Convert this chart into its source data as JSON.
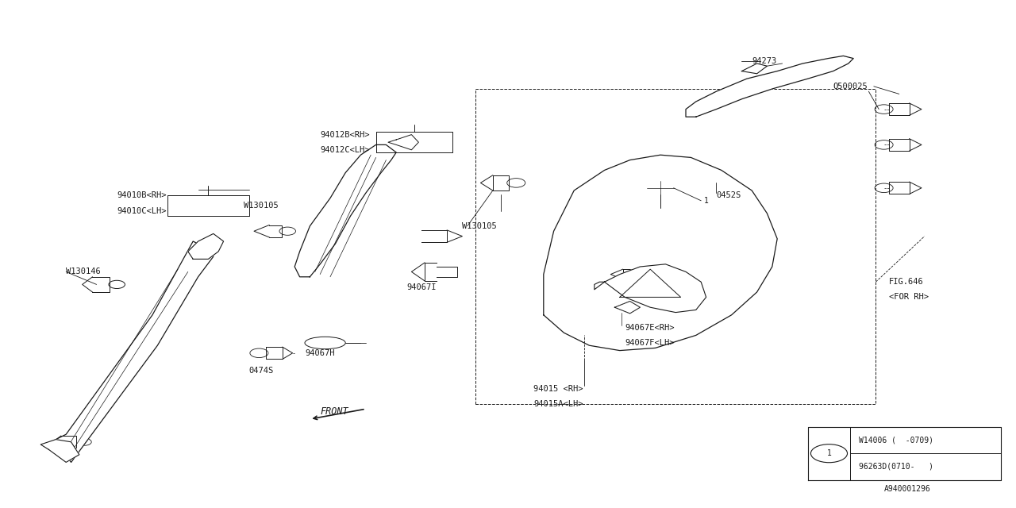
{
  "bg_color": "#ffffff",
  "line_color": "#1a1a1a",
  "fig_width": 12.8,
  "fig_height": 6.4,
  "dpi": 100,
  "labels": {
    "94010B_RH": [
      0.115,
      0.615,
      "94010B<RH>"
    ],
    "94010C_LH": [
      0.115,
      0.585,
      "94010C<LH>"
    ],
    "W130146": [
      0.065,
      0.465,
      "W130146"
    ],
    "94012B_RH": [
      0.315,
      0.735,
      "94012B<RH>"
    ],
    "94012C_LH": [
      0.315,
      0.705,
      "94012C<LH>"
    ],
    "W130105_L": [
      0.24,
      0.595,
      "W130105"
    ],
    "94067I": [
      0.4,
      0.435,
      "94067I"
    ],
    "94067H": [
      0.3,
      0.305,
      "94067H"
    ],
    "0474S_L": [
      0.245,
      0.27,
      "0474S"
    ],
    "W130105_R": [
      0.455,
      0.555,
      "W130105"
    ],
    "94273": [
      0.74,
      0.88,
      "94273"
    ],
    "Q500025": [
      0.82,
      0.83,
      "Q500025"
    ],
    "0452S": [
      0.705,
      0.615,
      "0452S"
    ],
    "0474S_R": [
      0.635,
      0.445,
      "0474S"
    ],
    "94067E_RH": [
      0.615,
      0.355,
      "94067E<RH>"
    ],
    "94067F_LH": [
      0.615,
      0.325,
      "94067F<LH>"
    ],
    "94015_RH": [
      0.525,
      0.235,
      "94015 <RH>"
    ],
    "94015A_LH": [
      0.525,
      0.205,
      "94015A<LH>"
    ],
    "FIG646": [
      0.875,
      0.445,
      "FIG.646"
    ],
    "FOR_RH": [
      0.875,
      0.415,
      "<FOR RH>"
    ],
    "diagram_id": [
      0.87,
      0.038,
      "A940001296"
    ]
  }
}
